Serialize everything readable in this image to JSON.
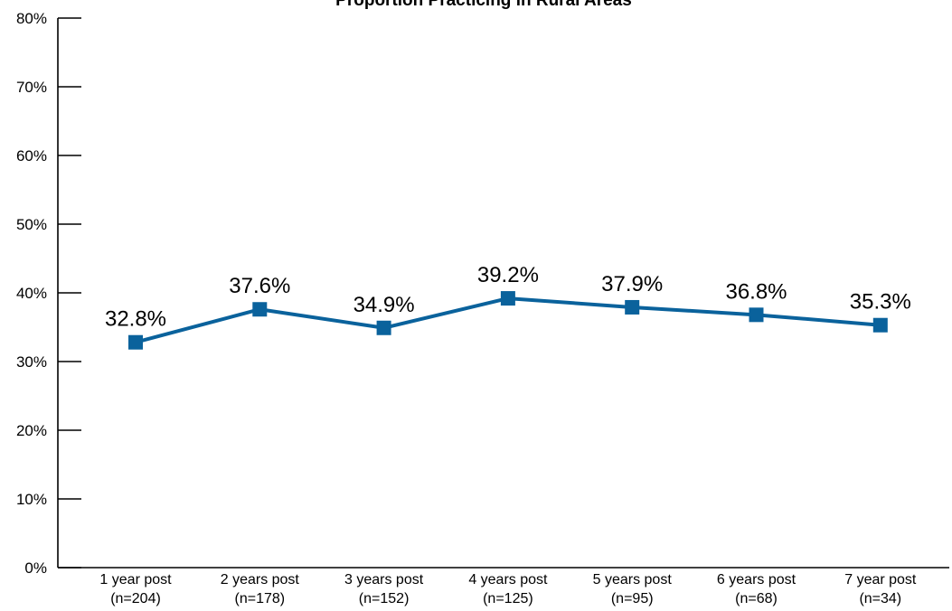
{
  "chart_data": {
    "type": "line",
    "title": "Proportion Practicing in Rural Areas",
    "xlabel": "",
    "ylabel": "",
    "ylim": [
      0,
      80
    ],
    "y_ticks": [
      "0%",
      "10%",
      "20%",
      "30%",
      "40%",
      "50%",
      "60%",
      "70%",
      "80%"
    ],
    "categories": [
      {
        "line1": "1 year post",
        "line2": "(n=204)"
      },
      {
        "line1": "2 years post",
        "line2": "(n=178)"
      },
      {
        "line1": "3 years post",
        "line2": "(n=152)"
      },
      {
        "line1": "4 years post",
        "line2": "(n=125)"
      },
      {
        "line1": "5 years post",
        "line2": "(n=95)"
      },
      {
        "line1": "6 years post",
        "line2": "(n=68)"
      },
      {
        "line1": "7 year post",
        "line2": "(n=34)"
      }
    ],
    "series": [
      {
        "values": [
          32.8,
          37.6,
          34.9,
          39.2,
          37.9,
          36.8,
          35.3
        ],
        "labels": [
          "32.8%",
          "37.6%",
          "34.9%",
          "39.2%",
          "37.9%",
          "36.8%",
          "35.3%"
        ],
        "color": "#0a629c",
        "marker": "square"
      }
    ],
    "grid": false,
    "legend": "none"
  }
}
